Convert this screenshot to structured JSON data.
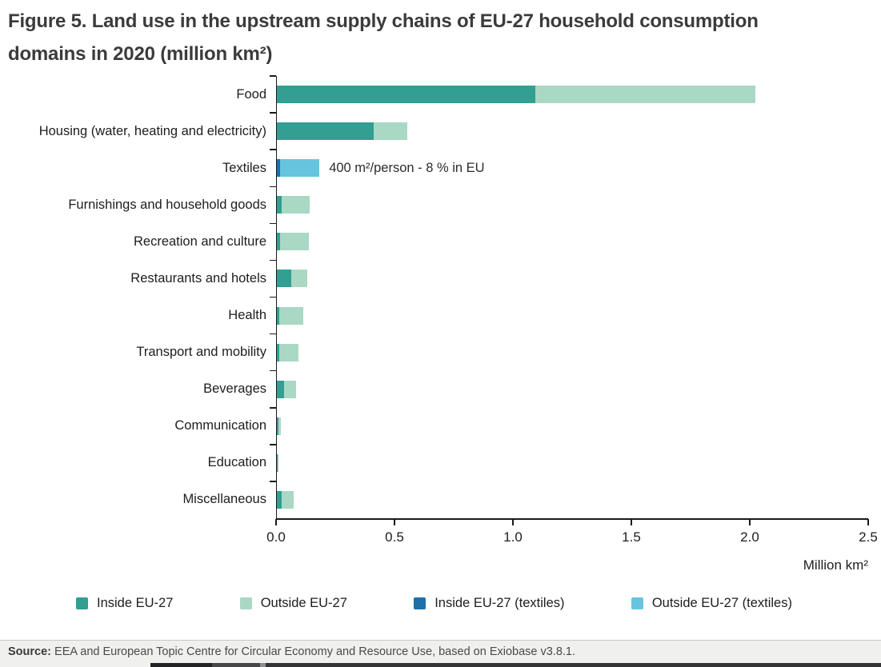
{
  "figure": {
    "title": "Figure 5. Land use in the upstream supply chains of EU-27 household consumption domains in 2020 (million km²)"
  },
  "chart_data": {
    "type": "bar",
    "orientation": "horizontal",
    "stacked": true,
    "title": "Figure 5. Land use in the upstream supply chains of EU-27 household consumption domains in 2020 (million km²)",
    "xlabel": "Million km²",
    "xlim": [
      0,
      2.5
    ],
    "x_ticks": [
      "0.0",
      "0.5",
      "1.0",
      "1.5",
      "2.0",
      "2.5"
    ],
    "grid": false,
    "legend_position": "bottom",
    "units": "million km²",
    "categories": [
      "Food",
      "Housing (water, heating and electricity)",
      "Textiles",
      "Furnishings and household goods",
      "Recreation and culture",
      "Restaurants and hotels",
      "Health",
      "Transport and mobility",
      "Beverages",
      "Communication",
      "Education",
      "Miscellaneous"
    ],
    "series": [
      {
        "name": "Inside EU-27",
        "color": "#339e92",
        "values": [
          1.09,
          0.41,
          0,
          0.02,
          0.015,
          0.06,
          0.01,
          0.01,
          0.03,
          0.005,
          0.002,
          0.02
        ]
      },
      {
        "name": "Outside EU-27",
        "color": "#a9d8c5",
        "values": [
          0.93,
          0.14,
          0,
          0.12,
          0.12,
          0.07,
          0.1,
          0.08,
          0.05,
          0.011,
          0.003,
          0.05
        ]
      },
      {
        "name": "Inside EU-27 (textiles)",
        "color": "#1f6fa8",
        "values": [
          0,
          0,
          0.014,
          0,
          0,
          0,
          0,
          0,
          0,
          0,
          0,
          0
        ]
      },
      {
        "name": "Outside EU-27 (textiles)",
        "color": "#67c4df",
        "values": [
          0,
          0,
          0.166,
          0,
          0,
          0,
          0,
          0,
          0,
          0,
          0,
          0
        ]
      }
    ],
    "annotation": {
      "category": "Textiles",
      "text": "400 m²/person - 8 % in EU"
    }
  },
  "legend": {
    "items": [
      {
        "label": "Inside EU-27",
        "color": "#339e92"
      },
      {
        "label": "Outside EU-27",
        "color": "#a9d8c5"
      },
      {
        "label": "Inside EU-27 (textiles)",
        "color": "#1f6fa8"
      },
      {
        "label": "Outside EU-27 (textiles)",
        "color": "#67c4df"
      }
    ]
  },
  "source": {
    "label": "Source:",
    "text": " EEA and European Topic Centre for Circular Economy and Resource Use, based on Exiobase v3.8.1."
  }
}
